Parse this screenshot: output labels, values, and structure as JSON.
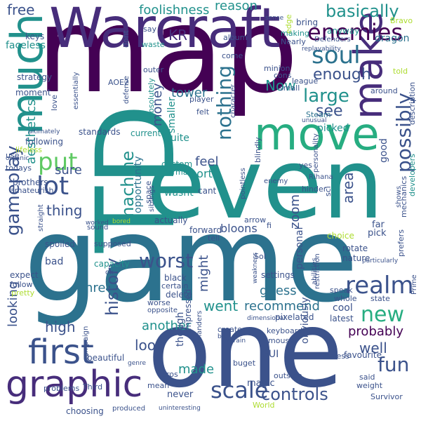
{
  "words": {
    "map": "map",
    "TD": "TD",
    "even": "even",
    "game": "game",
    "one": "one",
    "warcraft": "Warcraft",
    "much": "much",
    "move": "move",
    "make": "make",
    "graphic": "graphic",
    "first": "first",
    "enemies": "enemies",
    "soul": "soul",
    "gameplay": "gameplay",
    "realm": "realm",
    "lot": "lot",
    "put": "put",
    "possibly": "possibly",
    "new": "new",
    "fun": "fun",
    "scale": "scale",
    "controls": "controls",
    "nothing": "nothing",
    "worst": "worst",
    "history": "history",
    "machine": "machine",
    "aesthetics": "aesthetics",
    "basically": "basically",
    "foolishness": "foolishness",
    "free": "free",
    "KR": "KR",
    "reason": "reason",
    "large": "large",
    "enough": "enough",
    "tower": "tower",
    "money": "money",
    "see": "see",
    "Now": "Now",
    "thing": "thing",
    "sure": "sure",
    "feel": "feel",
    "area": "area",
    "zoom": "zoom",
    "might": "might",
    "guess": "guess",
    "went": "went",
    "recommend": "recommend",
    "another": "another",
    "high": "high",
    "look": "look",
    "looking": "looking",
    "probably": "probably",
    "well": "well",
    "Three": "Three",
    "bloons": "bloons",
    "port": "port",
    "Quite": "Quite",
    "opportunity": "opportunity",
    "wasnt": "wasnt",
    "smaller": "smaller",
    "dragon": "dragon",
    "anyway": "anyway",
    "bring": "bring",
    "album": "album",
    "come": "come",
    "dont": "dont",
    "say": "say",
    "keys": "keys",
    "waste": "waste",
    "faceless": "faceless",
    "strategy": "strategy",
    "AOE2": "AOE2",
    "outer": "outer",
    "Nearly": "Nearly",
    "Defenders": "Defenders",
    "edge": "edge",
    "Bravo": "Bravo",
    "told": "told",
    "sense": "sense",
    "replayability": "replayability",
    "making": "making",
    "league": "league",
    "minion": "minion",
    "cons": "cons",
    "small": "small",
    "Steam": "Steam",
    "unusual": "unusual",
    "around": "around",
    "description": "description",
    "developers": "developers",
    "moment": "moment",
    "love": "love",
    "essentially": "essentially",
    "defense": "defense",
    "absolutely": "absolutely",
    "player": "player",
    "felt": "felt",
    "character": "character",
    "ultimately": "ultimately",
    "standards": "standards",
    "current": "current",
    "picked": "picked",
    "following": "following",
    "lifeless": "lifeless",
    "organic": "organic",
    "use": "use",
    "todays": "todays",
    "brothers": "brothers",
    "amateurish": "amateurish",
    "custom": "custom",
    "normal": "normal",
    "cant": "cant",
    "blindly": "blindly",
    "yes": "yes",
    "personality": "personality",
    "good": "good",
    "enemy": "enemy",
    "pointless": "pointless",
    "space": "space",
    "siblings": "siblings",
    "hinder": "hinder",
    "sci": "sci",
    "Rihana": "Rihana",
    "shows": "shows",
    "worked": "worked",
    "sound": "sound",
    "bored": "bored",
    "actually": "actually",
    "arrow": "arrow",
    "fi": "fi",
    "far": "far",
    "pick": "pick",
    "mechanics": "mechanics",
    "forward": "forward",
    "tell": "tell",
    "choice": "choice",
    "straight": "straight",
    "spoiled": "spoiled",
    "supposed": "supposed",
    "bad": "bad",
    "capacity": "capacity",
    "Sol": "Sol",
    "rotate": "rotate",
    "nature": "nature",
    "prefers": "prefers",
    "ok": "ok",
    "black": "black",
    "certain": "certain",
    "abilities": "abilities",
    "weakness": "weakness",
    "particularly": "particularly",
    "state": "state",
    "Prime": "Prime",
    "expect": "expect",
    "follow": "follow",
    "pretty": "pretty",
    "delete": "delete",
    "worse": "worse",
    "opposite": "opposite",
    "settings": "settings",
    "personal": "personal",
    "restriction": "restriction",
    "speak": "speak",
    "whole": "whole",
    "cool": "cool",
    "dimensional": "dimensional",
    "pixelated": "pixelated",
    "latest": "latest",
    "favourite": "favourite",
    "create": "create",
    "bit": "bit",
    "terrain": "terrain",
    "keyboard": "keyboard",
    "mouse": "mouse",
    "impressed": "impressed",
    "though": "though",
    "GUI": "GUI",
    "obviously": "obviously",
    "Useless": "Useless",
    "Survivor": "Survivor",
    "beautiful": "beautiful",
    "buget": "buget",
    "campaign": "campaign",
    "genre": "genre",
    "made": "made",
    "pros": "pros",
    "outside": "outside",
    "said": "said",
    "weight": "weight",
    "problems": "problems",
    "Third": "Third",
    "mean": "mean",
    "magic": "magic",
    "never": "never",
    "commanders": "commanders",
    "uninteresting": "uninteresting",
    "choosing": "choosing",
    "produced": "produced",
    "World": "World"
  },
  "palette": {
    "dark_purple": "#440154",
    "purple": "#472d7b",
    "indigo": "#3b528b",
    "blue": "#31688e",
    "teal_blue": "#2c728e",
    "teal": "#21918c",
    "sea_green": "#27ad81",
    "green": "#5ec962",
    "lime": "#addc30",
    "yellow": "#d8e219"
  }
}
